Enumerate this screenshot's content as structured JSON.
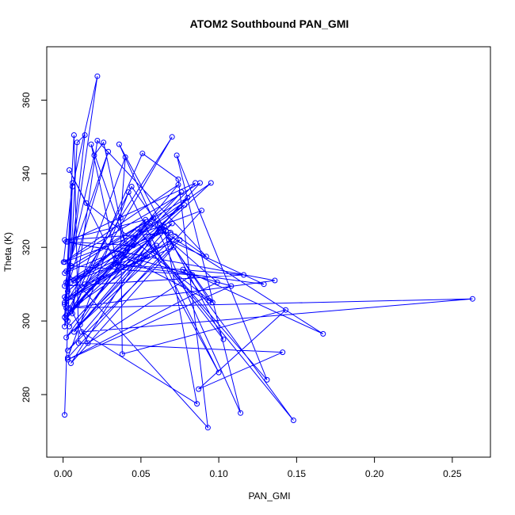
{
  "chart_data": {
    "type": "line",
    "title": "ATOM2 Southbound PAN_GMI",
    "xlabel": "PAN_GMI",
    "ylabel": "Theta (K)",
    "xlim": [
      -0.0105,
      0.2745
    ],
    "ylim": [
      263.0,
      374.5
    ],
    "xticks": [
      0.0,
      0.05,
      0.1,
      0.15,
      0.2,
      0.25
    ],
    "xtick_labels": [
      "0.00",
      "0.05",
      "0.10",
      "0.15",
      "0.20",
      "0.25"
    ],
    "yticks": [
      280,
      300,
      320,
      340,
      360
    ],
    "ytick_labels": [
      "280",
      "300",
      "320",
      "340",
      "360"
    ],
    "grid": false,
    "marker": "open-circle",
    "color": "#0000ff",
    "points": [
      {
        "x": 0.001,
        "y": 274.5
      },
      {
        "x": 0.006,
        "y": 337.5
      },
      {
        "x": 0.0003,
        "y": 316.0
      },
      {
        "x": 0.074,
        "y": 337.0
      },
      {
        "x": 0.002,
        "y": 300.5
      },
      {
        "x": 0.07,
        "y": 350.0
      },
      {
        "x": 0.001,
        "y": 304.5
      },
      {
        "x": 0.022,
        "y": 366.5
      },
      {
        "x": 0.006,
        "y": 336.5
      },
      {
        "x": 0.001,
        "y": 298.5
      },
      {
        "x": 0.04,
        "y": 344.5
      },
      {
        "x": 0.037,
        "y": 328.0
      },
      {
        "x": 0.038,
        "y": 291.0
      },
      {
        "x": 0.143,
        "y": 303.0
      },
      {
        "x": 0.087,
        "y": 281.5
      },
      {
        "x": 0.141,
        "y": 291.5
      },
      {
        "x": 0.01,
        "y": 294.0
      },
      {
        "x": 0.007,
        "y": 350.5
      },
      {
        "x": 0.001,
        "y": 301.0
      },
      {
        "x": 0.014,
        "y": 350.5
      },
      {
        "x": 0.009,
        "y": 348.5
      },
      {
        "x": 0.003,
        "y": 300.0
      },
      {
        "x": 0.002,
        "y": 303.5
      },
      {
        "x": 0.263,
        "y": 306.0
      },
      {
        "x": 0.012,
        "y": 297.0
      },
      {
        "x": 0.086,
        "y": 277.5
      },
      {
        "x": 0.065,
        "y": 325.5
      },
      {
        "x": 0.092,
        "y": 317.5
      },
      {
        "x": 0.022,
        "y": 349.0
      },
      {
        "x": 0.006,
        "y": 302.0
      },
      {
        "x": 0.051,
        "y": 345.5
      },
      {
        "x": 0.074,
        "y": 338.5
      },
      {
        "x": 0.093,
        "y": 271.0
      },
      {
        "x": 0.002,
        "y": 313.5
      },
      {
        "x": 0.029,
        "y": 346.0
      },
      {
        "x": 0.001,
        "y": 306.5
      },
      {
        "x": 0.016,
        "y": 294.0
      },
      {
        "x": 0.083,
        "y": 312.5
      },
      {
        "x": 0.005,
        "y": 315.0
      },
      {
        "x": 0.08,
        "y": 333.5
      },
      {
        "x": 0.004,
        "y": 298.5
      },
      {
        "x": 0.088,
        "y": 337.5
      },
      {
        "x": 0.001,
        "y": 316.0
      },
      {
        "x": 0.089,
        "y": 330.0
      },
      {
        "x": 0.003,
        "y": 290.0
      },
      {
        "x": 0.042,
        "y": 335.0
      },
      {
        "x": 0.1,
        "y": 286.0
      },
      {
        "x": 0.055,
        "y": 321.0
      },
      {
        "x": 0.131,
        "y": 284.0
      },
      {
        "x": 0.073,
        "y": 345.0
      },
      {
        "x": 0.114,
        "y": 275.0
      },
      {
        "x": 0.036,
        "y": 348.0
      },
      {
        "x": 0.103,
        "y": 295.0
      },
      {
        "x": 0.048,
        "y": 325.0
      },
      {
        "x": 0.148,
        "y": 273.0
      },
      {
        "x": 0.077,
        "y": 314.0
      },
      {
        "x": 0.167,
        "y": 296.5
      },
      {
        "x": 0.056,
        "y": 326.5
      },
      {
        "x": 0.005,
        "y": 302.5
      },
      {
        "x": 0.095,
        "y": 337.5
      },
      {
        "x": 0.005,
        "y": 310.5
      },
      {
        "x": 0.075,
        "y": 322.0
      },
      {
        "x": 0.003,
        "y": 292.0
      },
      {
        "x": 0.054,
        "y": 317.5
      },
      {
        "x": 0.002,
        "y": 321.5
      },
      {
        "x": 0.136,
        "y": 311.0
      },
      {
        "x": 0.004,
        "y": 303.5
      },
      {
        "x": 0.044,
        "y": 336.5
      },
      {
        "x": 0.096,
        "y": 305.0
      },
      {
        "x": 0.015,
        "y": 332.0
      },
      {
        "x": 0.004,
        "y": 341.0
      },
      {
        "x": 0.035,
        "y": 315.0
      },
      {
        "x": 0.018,
        "y": 348.0
      },
      {
        "x": 0.04,
        "y": 321.0
      },
      {
        "x": 0.026,
        "y": 348.5
      },
      {
        "x": 0.02,
        "y": 345.0
      },
      {
        "x": 0.001,
        "y": 309.5
      },
      {
        "x": 0.116,
        "y": 312.5
      },
      {
        "x": 0.033,
        "y": 315.5
      },
      {
        "x": 0.129,
        "y": 310.0
      },
      {
        "x": 0.068,
        "y": 322.0
      },
      {
        "x": 0.099,
        "y": 310.5
      },
      {
        "x": 0.003,
        "y": 289.5
      },
      {
        "x": 0.108,
        "y": 309.5
      },
      {
        "x": 0.037,
        "y": 318.0
      },
      {
        "x": 0.094,
        "y": 305.5
      },
      {
        "x": 0.062,
        "y": 326.0
      },
      {
        "x": 0.005,
        "y": 288.5
      },
      {
        "x": 0.071,
        "y": 320.0
      },
      {
        "x": 0.014,
        "y": 310.0
      },
      {
        "x": 0.058,
        "y": 328.0
      },
      {
        "x": 0.002,
        "y": 301.5
      },
      {
        "x": 0.076,
        "y": 335.0
      },
      {
        "x": 0.003,
        "y": 308.0
      },
      {
        "x": 0.053,
        "y": 327.5
      },
      {
        "x": 0.001,
        "y": 322.0
      },
      {
        "x": 0.069,
        "y": 324.0
      },
      {
        "x": 0.002,
        "y": 295.5
      },
      {
        "x": 0.045,
        "y": 320.5
      },
      {
        "x": 0.003,
        "y": 321.5
      },
      {
        "x": 0.085,
        "y": 337.5
      },
      {
        "x": 0.009,
        "y": 304.5
      },
      {
        "x": 0.072,
        "y": 323.0
      },
      {
        "x": 0.011,
        "y": 299.0
      },
      {
        "x": 0.063,
        "y": 325.0
      },
      {
        "x": 0.007,
        "y": 311.0
      },
      {
        "x": 0.034,
        "y": 316.5
      },
      {
        "x": 0.002,
        "y": 306.0
      },
      {
        "x": 0.059,
        "y": 319.0
      },
      {
        "x": 0.001,
        "y": 305.0
      },
      {
        "x": 0.07,
        "y": 326.5
      },
      {
        "x": 0.007,
        "y": 297.0
      },
      {
        "x": 0.054,
        "y": 327.0
      },
      {
        "x": 0.001,
        "y": 313.0
      },
      {
        "x": 0.066,
        "y": 324.5
      },
      {
        "x": 0.002,
        "y": 310.5
      },
      {
        "x": 0.078,
        "y": 331.5
      },
      {
        "x": 0.006,
        "y": 306.5
      },
      {
        "x": 0.06,
        "y": 320.5
      }
    ]
  }
}
